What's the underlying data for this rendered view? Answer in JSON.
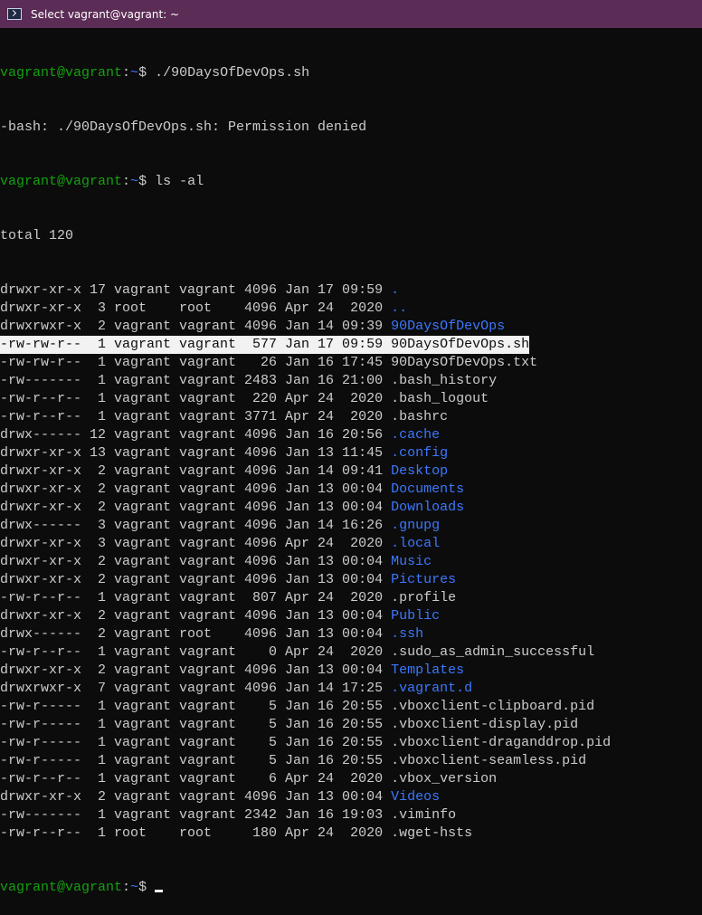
{
  "window": {
    "title": "Select vagrant@vagrant: ~",
    "icon": "powershell-icon"
  },
  "colors": {
    "prompt_user": "#13a10e",
    "prompt_path": "#3b78ff",
    "directory": "#3b78ff",
    "text": "#cccccc",
    "titlebar": "#5b2c55",
    "selection": "#f2f2f2"
  },
  "prompt": {
    "user_host": "vagrant@vagrant",
    "colon": ":",
    "path": "~",
    "symbol": "$ "
  },
  "commands": [
    "./90DaysOfDevOps.sh",
    "ls -al"
  ],
  "error_output": "-bash: ./90DaysOfDevOps.sh: Permission denied",
  "total": "total 120",
  "listing": [
    {
      "perms": "drwxr-xr-x",
      "links": "17",
      "owner": "vagrant",
      "group": "vagrant",
      "size": "4096",
      "month": "Jan",
      "day": "17",
      "time": "09:59",
      "name": ".",
      "dir": true
    },
    {
      "perms": "drwxr-xr-x",
      "links": "3",
      "owner": "root",
      "group": "root",
      "size": "4096",
      "month": "Apr",
      "day": "24",
      "time": "2020",
      "name": "..",
      "dir": true
    },
    {
      "perms": "drwxrwxr-x",
      "links": "2",
      "owner": "vagrant",
      "group": "vagrant",
      "size": "4096",
      "month": "Jan",
      "day": "14",
      "time": "09:39",
      "name": "90DaysOfDevOps",
      "dir": true
    },
    {
      "perms": "-rw-rw-r--",
      "links": "1",
      "owner": "vagrant",
      "group": "vagrant",
      "size": "577",
      "month": "Jan",
      "day": "17",
      "time": "09:59",
      "name": "90DaysOfDevOps.sh",
      "dir": false,
      "selected": true
    },
    {
      "perms": "-rw-rw-r--",
      "links": "1",
      "owner": "vagrant",
      "group": "vagrant",
      "size": "26",
      "month": "Jan",
      "day": "16",
      "time": "17:45",
      "name": "90DaysOfDevOps.txt",
      "dir": false
    },
    {
      "perms": "-rw-------",
      "links": "1",
      "owner": "vagrant",
      "group": "vagrant",
      "size": "2483",
      "month": "Jan",
      "day": "16",
      "time": "21:00",
      "name": ".bash_history",
      "dir": false
    },
    {
      "perms": "-rw-r--r--",
      "links": "1",
      "owner": "vagrant",
      "group": "vagrant",
      "size": "220",
      "month": "Apr",
      "day": "24",
      "time": "2020",
      "name": ".bash_logout",
      "dir": false
    },
    {
      "perms": "-rw-r--r--",
      "links": "1",
      "owner": "vagrant",
      "group": "vagrant",
      "size": "3771",
      "month": "Apr",
      "day": "24",
      "time": "2020",
      "name": ".bashrc",
      "dir": false
    },
    {
      "perms": "drwx------",
      "links": "12",
      "owner": "vagrant",
      "group": "vagrant",
      "size": "4096",
      "month": "Jan",
      "day": "16",
      "time": "20:56",
      "name": ".cache",
      "dir": true
    },
    {
      "perms": "drwxr-xr-x",
      "links": "13",
      "owner": "vagrant",
      "group": "vagrant",
      "size": "4096",
      "month": "Jan",
      "day": "13",
      "time": "11:45",
      "name": ".config",
      "dir": true
    },
    {
      "perms": "drwxr-xr-x",
      "links": "2",
      "owner": "vagrant",
      "group": "vagrant",
      "size": "4096",
      "month": "Jan",
      "day": "14",
      "time": "09:41",
      "name": "Desktop",
      "dir": true
    },
    {
      "perms": "drwxr-xr-x",
      "links": "2",
      "owner": "vagrant",
      "group": "vagrant",
      "size": "4096",
      "month": "Jan",
      "day": "13",
      "time": "00:04",
      "name": "Documents",
      "dir": true
    },
    {
      "perms": "drwxr-xr-x",
      "links": "2",
      "owner": "vagrant",
      "group": "vagrant",
      "size": "4096",
      "month": "Jan",
      "day": "13",
      "time": "00:04",
      "name": "Downloads",
      "dir": true
    },
    {
      "perms": "drwx------",
      "links": "3",
      "owner": "vagrant",
      "group": "vagrant",
      "size": "4096",
      "month": "Jan",
      "day": "14",
      "time": "16:26",
      "name": ".gnupg",
      "dir": true
    },
    {
      "perms": "drwxr-xr-x",
      "links": "3",
      "owner": "vagrant",
      "group": "vagrant",
      "size": "4096",
      "month": "Apr",
      "day": "24",
      "time": "2020",
      "name": ".local",
      "dir": true
    },
    {
      "perms": "drwxr-xr-x",
      "links": "2",
      "owner": "vagrant",
      "group": "vagrant",
      "size": "4096",
      "month": "Jan",
      "day": "13",
      "time": "00:04",
      "name": "Music",
      "dir": true
    },
    {
      "perms": "drwxr-xr-x",
      "links": "2",
      "owner": "vagrant",
      "group": "vagrant",
      "size": "4096",
      "month": "Jan",
      "day": "13",
      "time": "00:04",
      "name": "Pictures",
      "dir": true
    },
    {
      "perms": "-rw-r--r--",
      "links": "1",
      "owner": "vagrant",
      "group": "vagrant",
      "size": "807",
      "month": "Apr",
      "day": "24",
      "time": "2020",
      "name": ".profile",
      "dir": false
    },
    {
      "perms": "drwxr-xr-x",
      "links": "2",
      "owner": "vagrant",
      "group": "vagrant",
      "size": "4096",
      "month": "Jan",
      "day": "13",
      "time": "00:04",
      "name": "Public",
      "dir": true
    },
    {
      "perms": "drwx------",
      "links": "2",
      "owner": "vagrant",
      "group": "root",
      "size": "4096",
      "month": "Jan",
      "day": "13",
      "time": "00:04",
      "name": ".ssh",
      "dir": true
    },
    {
      "perms": "-rw-r--r--",
      "links": "1",
      "owner": "vagrant",
      "group": "vagrant",
      "size": "0",
      "month": "Apr",
      "day": "24",
      "time": "2020",
      "name": ".sudo_as_admin_successful",
      "dir": false
    },
    {
      "perms": "drwxr-xr-x",
      "links": "2",
      "owner": "vagrant",
      "group": "vagrant",
      "size": "4096",
      "month": "Jan",
      "day": "13",
      "time": "00:04",
      "name": "Templates",
      "dir": true
    },
    {
      "perms": "drwxrwxr-x",
      "links": "7",
      "owner": "vagrant",
      "group": "vagrant",
      "size": "4096",
      "month": "Jan",
      "day": "14",
      "time": "17:25",
      "name": ".vagrant.d",
      "dir": true
    },
    {
      "perms": "-rw-r-----",
      "links": "1",
      "owner": "vagrant",
      "group": "vagrant",
      "size": "5",
      "month": "Jan",
      "day": "16",
      "time": "20:55",
      "name": ".vboxclient-clipboard.pid",
      "dir": false
    },
    {
      "perms": "-rw-r-----",
      "links": "1",
      "owner": "vagrant",
      "group": "vagrant",
      "size": "5",
      "month": "Jan",
      "day": "16",
      "time": "20:55",
      "name": ".vboxclient-display.pid",
      "dir": false
    },
    {
      "perms": "-rw-r-----",
      "links": "1",
      "owner": "vagrant",
      "group": "vagrant",
      "size": "5",
      "month": "Jan",
      "day": "16",
      "time": "20:55",
      "name": ".vboxclient-draganddrop.pid",
      "dir": false
    },
    {
      "perms": "-rw-r-----",
      "links": "1",
      "owner": "vagrant",
      "group": "vagrant",
      "size": "5",
      "month": "Jan",
      "day": "16",
      "time": "20:55",
      "name": ".vboxclient-seamless.pid",
      "dir": false
    },
    {
      "perms": "-rw-r--r--",
      "links": "1",
      "owner": "vagrant",
      "group": "vagrant",
      "size": "6",
      "month": "Apr",
      "day": "24",
      "time": "2020",
      "name": ".vbox_version",
      "dir": false
    },
    {
      "perms": "drwxr-xr-x",
      "links": "2",
      "owner": "vagrant",
      "group": "vagrant",
      "size": "4096",
      "month": "Jan",
      "day": "13",
      "time": "00:04",
      "name": "Videos",
      "dir": true
    },
    {
      "perms": "-rw-------",
      "links": "1",
      "owner": "vagrant",
      "group": "vagrant",
      "size": "2342",
      "month": "Jan",
      "day": "16",
      "time": "19:03",
      "name": ".viminfo",
      "dir": false
    },
    {
      "perms": "-rw-r--r--",
      "links": "1",
      "owner": "root",
      "group": "root",
      "size": "180",
      "month": "Apr",
      "day": "24",
      "time": "2020",
      "name": ".wget-hsts",
      "dir": false
    }
  ]
}
